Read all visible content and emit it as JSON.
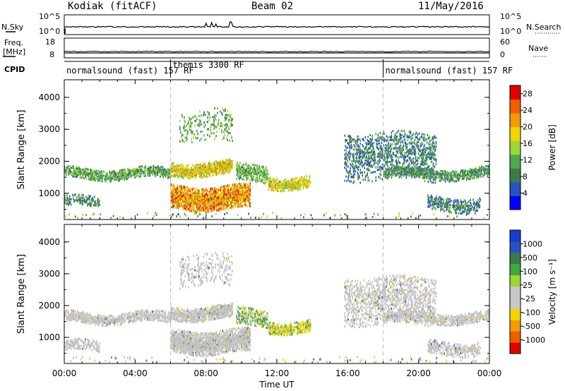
{
  "header": {
    "station": "Kodiak (fitACF)",
    "beam": "Beam 02",
    "date": "11/May/2016"
  },
  "noise_panel": {
    "left_label": "N.Sky",
    "right_label": "N.Search",
    "left_ticks": [
      "10^5",
      "10^0"
    ],
    "right_ticks": [
      "10^5",
      "10^0"
    ]
  },
  "freq_panel": {
    "left_label_1": "Freq.",
    "left_label_2": "[MHz]",
    "left_ticks": [
      "18",
      "8"
    ],
    "right_label": "Nave",
    "right_ticks": [
      "60",
      "0"
    ]
  },
  "cpid_panel": {
    "label": "CPID",
    "modes": [
      {
        "name": "normalsound (fast)",
        "id": "157",
        "suffix": "RF",
        "start_h": 0,
        "end_h": 6
      },
      {
        "name": "themis",
        "id": "3300",
        "suffix": "RF",
        "start_h": 6,
        "end_h": 18
      },
      {
        "name": "normalsound (fast)",
        "id": "157",
        "suffix": "RF",
        "start_h": 18,
        "end_h": 24
      }
    ]
  },
  "x_axis": {
    "label": "Time UT",
    "ticks": [
      "00:00",
      "04:00",
      "08:00",
      "12:00",
      "16:00",
      "20:00",
      "00:00"
    ],
    "range_hours": [
      0,
      24
    ]
  },
  "colors": {
    "power_scale": [
      "#0000ff",
      "#2a51c0",
      "#3d7a4a",
      "#4fa84f",
      "#9ed636",
      "#f2d400",
      "#f39b00",
      "#ef5e00",
      "#e00000"
    ],
    "velocity_scale": [
      "#e00000",
      "#ef5e00",
      "#f39b00",
      "#f2d400",
      "#c8c8c8",
      "#c8c8c8",
      "#9ed636",
      "#3daa3d",
      "#3d7a4a",
      "#2a51c0",
      "#1a3ad0"
    ],
    "ground_scatter": "#c0c0c0"
  },
  "chart_data": [
    {
      "type": "heatmap",
      "quantity": "power",
      "ylabel": "Slant Range [km]",
      "yticks": [
        "1000",
        "2000",
        "3000",
        "4000"
      ],
      "ylim": [
        180,
        4550
      ],
      "colorbar_label": "Power [dB]",
      "colorbar_ticks": [
        "4",
        "8",
        "12",
        "16",
        "20",
        "24",
        "28"
      ],
      "clim": [
        0,
        30
      ],
      "regions": [
        {
          "t": [
            0.0,
            6.0
          ],
          "r": [
            1450,
            1800
          ],
          "center_r": 1600,
          "v": [
            6,
            16
          ],
          "density": 0.7
        },
        {
          "t": [
            6.0,
            9.5
          ],
          "r": [
            1550,
            2000
          ],
          "center_r": 1750,
          "v": [
            12,
            24
          ],
          "density": 0.85
        },
        {
          "t": [
            6.0,
            10.5
          ],
          "r": [
            500,
            1250
          ],
          "center_r": 850,
          "v": [
            14,
            29
          ],
          "density": 0.9
        },
        {
          "t": [
            9.7,
            11.5
          ],
          "r": [
            1350,
            1900
          ],
          "center_r": 1600,
          "v": [
            8,
            16
          ],
          "density": 0.6
        },
        {
          "t": [
            11.5,
            13.9
          ],
          "r": [
            1150,
            1550
          ],
          "center_r": 1300,
          "v": [
            12,
            22
          ],
          "density": 0.75
        },
        {
          "t": [
            15.8,
            21.0
          ],
          "r": [
            1400,
            2900
          ],
          "center_r": 2200,
          "v": [
            4,
            12
          ],
          "density": 0.35
        },
        {
          "t": [
            18.0,
            24.0
          ],
          "r": [
            1450,
            1800
          ],
          "center_r": 1600,
          "v": [
            6,
            14
          ],
          "density": 0.65
        },
        {
          "t": [
            20.5,
            23.5
          ],
          "r": [
            450,
            900
          ],
          "center_r": 650,
          "v": [
            4,
            12
          ],
          "density": 0.5
        },
        {
          "t": [
            0.0,
            2.0
          ],
          "r": [
            550,
            900
          ],
          "center_r": 700,
          "v": [
            6,
            12
          ],
          "density": 0.45
        },
        {
          "t": [
            6.5,
            9.5
          ],
          "r": [
            2600,
            3600
          ],
          "center_r": 3100,
          "v": [
            8,
            16
          ],
          "density": 0.18
        }
      ]
    },
    {
      "type": "heatmap",
      "quantity": "velocity",
      "ylabel": "Slant Range [km]",
      "yticks": [
        "1000",
        "2000",
        "3000",
        "4000"
      ],
      "ylim": [
        180,
        4550
      ],
      "colorbar_label": "Velocity [m s^-1]",
      "colorbar_ticks": [
        "1000",
        "500",
        "100",
        "25",
        "-25",
        "-100",
        "-500",
        "-1000"
      ],
      "clim": [
        -1200,
        1200
      ],
      "regions": [
        {
          "t": [
            0.0,
            6.0
          ],
          "r": [
            1450,
            1800
          ],
          "center_r": 1600,
          "v": [
            -20,
            20
          ],
          "density": 0.7,
          "ground": true
        },
        {
          "t": [
            6.0,
            9.5
          ],
          "r": [
            1550,
            2000
          ],
          "center_r": 1750,
          "v": [
            -20,
            20
          ],
          "density": 0.8,
          "ground": true
        },
        {
          "t": [
            6.0,
            10.5
          ],
          "r": [
            500,
            1250
          ],
          "center_r": 850,
          "v": [
            -20,
            20
          ],
          "density": 0.85,
          "ground": true
        },
        {
          "t": [
            9.7,
            11.5
          ],
          "r": [
            1350,
            1900
          ],
          "center_r": 1600,
          "v": [
            -150,
            150
          ],
          "density": 0.6
        },
        {
          "t": [
            11.5,
            13.9
          ],
          "r": [
            1150,
            1550
          ],
          "center_r": 1300,
          "v": [
            -400,
            150
          ],
          "density": 0.75
        },
        {
          "t": [
            15.8,
            21.0
          ],
          "r": [
            1400,
            2900
          ],
          "center_r": 2200,
          "v": [
            -20,
            20
          ],
          "density": 0.35,
          "ground": true
        },
        {
          "t": [
            18.0,
            24.0
          ],
          "r": [
            1450,
            1800
          ],
          "center_r": 1600,
          "v": [
            -20,
            20
          ],
          "density": 0.65,
          "ground": true
        },
        {
          "t": [
            20.5,
            23.5
          ],
          "r": [
            450,
            900
          ],
          "center_r": 650,
          "v": [
            -20,
            20
          ],
          "density": 0.5,
          "ground": true
        },
        {
          "t": [
            0.0,
            2.0
          ],
          "r": [
            550,
            900
          ],
          "center_r": 700,
          "v": [
            -20,
            20
          ],
          "density": 0.45,
          "ground": true
        },
        {
          "t": [
            6.5,
            9.5
          ],
          "r": [
            2600,
            3600
          ],
          "center_r": 3100,
          "v": [
            -20,
            20
          ],
          "density": 0.18,
          "ground": true
        }
      ]
    }
  ]
}
